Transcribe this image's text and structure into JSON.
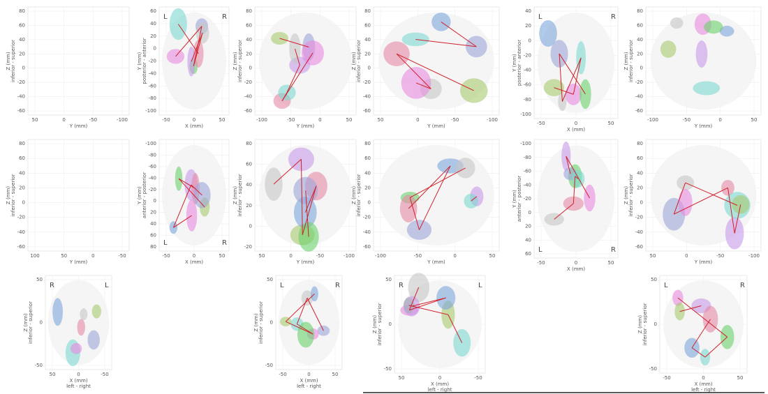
{
  "panels": [
    {
      "yticks": [
        80,
        60,
        40,
        20,
        0,
        -20,
        -40,
        -60
      ],
      "xticks": [
        50,
        0,
        -50,
        -100
      ],
      "xlabel": [
        "Y (mm)"
      ],
      "ylabel": [
        "Z (mm)",
        "inferior - superior"
      ],
      "sides": []
    },
    {
      "yticks": [
        60,
        40,
        20,
        0,
        -20,
        -40,
        -60,
        -80,
        -100
      ],
      "xticks": [
        -50,
        0,
        50
      ],
      "xlabel": [
        "X (mm)"
      ],
      "ylabel": [
        "Y (mm)",
        "posterior - anterior"
      ],
      "sides": [
        "L",
        "R"
      ]
    },
    {
      "yticks": [
        80,
        60,
        40,
        20,
        0,
        -20,
        -40,
        -60
      ],
      "xticks": [
        -100,
        -50,
        0,
        50
      ],
      "xlabel": [
        "Y (mm)"
      ],
      "ylabel": [
        "Z (mm)",
        "inferior - superior"
      ],
      "sides": []
    },
    {
      "yticks": [
        80,
        60,
        40,
        20,
        0,
        -20,
        -40,
        -60
      ],
      "xticks": [
        50,
        0,
        -50,
        -100
      ],
      "xlabel": [
        "Y (mm)"
      ],
      "ylabel": [
        "Z (mm)",
        "inferior - superior"
      ],
      "sides": []
    },
    {
      "yticks": [
        40,
        20,
        0,
        -20,
        -40,
        -60,
        -80,
        -100
      ],
      "xticks": [
        -50,
        0,
        50
      ],
      "xlabel": [
        "X (mm)"
      ],
      "ylabel": [
        "Y (mm)",
        "posterior - anterior"
      ],
      "sides": [
        "L",
        "R"
      ]
    },
    {
      "yticks": [
        80,
        60,
        40,
        20,
        0,
        -20,
        -40,
        -60
      ],
      "xticks": [
        -100,
        -50,
        0,
        50
      ],
      "xlabel": [
        "Y (mm)"
      ],
      "ylabel": [
        "Z (mm)",
        "inferior - superior"
      ],
      "sides": []
    },
    {
      "yticks": [
        80,
        60,
        40,
        20,
        0,
        -20,
        -40,
        -60
      ],
      "xticks": [
        100,
        50,
        0,
        -50
      ],
      "xlabel": [
        "Y (mm)"
      ],
      "ylabel": [
        "Z (mm)",
        "inferior - superior"
      ],
      "sides": []
    },
    {
      "yticks": [
        -100,
        -80,
        -60,
        -40,
        -20,
        0,
        20,
        40,
        60,
        80
      ],
      "xticks": [
        -50,
        0,
        50
      ],
      "xlabel": [
        "X (mm)"
      ],
      "ylabel": [
        "Y (mm)",
        "anterior - posterior"
      ],
      "sides": [
        "L",
        "R"
      ]
    },
    {
      "yticks": [
        80,
        60,
        40,
        20,
        0,
        -20
      ],
      "xticks": [
        50,
        0,
        -50,
        -100
      ],
      "xlabel": [
        "Y (mm)"
      ],
      "ylabel": [
        "Z (mm)",
        "inferior - superior"
      ],
      "sides": []
    },
    {
      "yticks": [
        80,
        60,
        40,
        20,
        0,
        -20,
        -40,
        -60
      ],
      "xticks": [
        -100,
        -50,
        0,
        50
      ],
      "xlabel": [
        "Y (mm)"
      ],
      "ylabel": [
        "Z (mm)",
        "inferior - superior"
      ],
      "sides": []
    },
    {
      "yticks": [
        -100,
        -80,
        -60,
        -40,
        -20,
        0,
        20,
        40,
        60
      ],
      "xticks": [
        -50,
        0,
        50
      ],
      "xlabel": [
        "X (mm)"
      ],
      "ylabel": [
        "Y (mm)",
        "anterior - posterior"
      ],
      "sides": [
        "L",
        "R"
      ]
    },
    {
      "yticks": [
        80,
        60,
        40,
        20,
        0,
        -20,
        -40,
        -60
      ],
      "xticks": [
        50,
        0,
        -50,
        -100
      ],
      "xlabel": [
        "Y (mm)"
      ],
      "ylabel": [
        "Z (mm)",
        "inferior - superior"
      ],
      "sides": []
    },
    {
      "yticks": [
        50,
        0,
        -50
      ],
      "xticks": [
        50,
        0,
        -50
      ],
      "xlabel": [
        "X (mm)",
        "left - right"
      ],
      "ylabel": [
        "Z (mm)",
        "inferior - superior"
      ],
      "sides": [
        "R",
        "L"
      ]
    },
    {
      "yticks": [
        50,
        0,
        -50
      ],
      "xticks": [
        -50,
        0,
        50
      ],
      "xlabel": [
        "X (mm)",
        "left - right"
      ],
      "ylabel": [
        "Z (mm)",
        "inferior - superior"
      ],
      "sides": [
        "L",
        "R"
      ]
    },
    {
      "yticks": [
        50,
        0,
        -50
      ],
      "xticks": [
        50,
        0,
        -50
      ],
      "xlabel": [
        "X (mm)",
        "left - right"
      ],
      "ylabel": [
        "Z (mm)",
        "inferior - superior"
      ],
      "sides": [
        "R",
        "L"
      ]
    },
    {
      "yticks": [
        50,
        0,
        -50
      ],
      "xticks": [
        -50,
        0,
        50
      ],
      "xlabel": [
        "X (mm)",
        "left - right"
      ],
      "ylabel": [
        "Z (mm)",
        "inferior - superior"
      ],
      "sides": [
        "L",
        "R"
      ]
    }
  ]
}
